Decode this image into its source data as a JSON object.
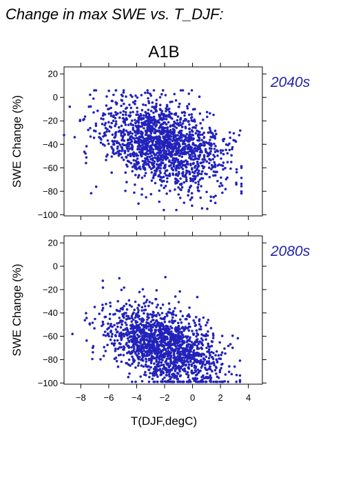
{
  "figure": {
    "title": "Change in max SWE vs. T_DJF:",
    "scenario": "A1B",
    "xlabel": "T(DJF,degC)",
    "point_color": "#2222bb",
    "label_color": "#2222aa"
  },
  "chart_data": [
    {
      "type": "scatter",
      "period_label": "2040s",
      "ylabel": "SWE Change (%)",
      "xlim": [
        -9.2,
        5.0
      ],
      "ylim": [
        -101,
        26
      ],
      "xticks": [
        -8,
        -6,
        -4,
        -2,
        0,
        2,
        4
      ],
      "yticks": [
        -100,
        -80,
        -60,
        -40,
        -20,
        0,
        20
      ],
      "ytick_labels": [
        "−100",
        "−80",
        "−60",
        "−40",
        "−20",
        "0",
        "20"
      ],
      "show_xtick_labels": false,
      "grid": false,
      "series": [
        {
          "n_points": 1600,
          "seed": 20401,
          "x_mean": -2.2,
          "x_sd": 2.1,
          "x_min": -9.2,
          "x_max": 3.5,
          "y_intercept": -46,
          "y_slope": -3.2,
          "y_sd": 18,
          "y_min": -96,
          "y_max": 6
        }
      ]
    },
    {
      "type": "scatter",
      "period_label": "2080s",
      "ylabel": "SWE Change (%)",
      "xlim": [
        -9.2,
        5.0
      ],
      "ylim": [
        -101,
        26
      ],
      "xticks": [
        -8,
        -6,
        -4,
        -2,
        0,
        2,
        4
      ],
      "xtick_labels": [
        "−8",
        "−6",
        "−4",
        "−2",
        "0",
        "2",
        "4"
      ],
      "yticks": [
        -100,
        -80,
        -60,
        -40,
        -20,
        0,
        20
      ],
      "ytick_labels": [
        "−100",
        "−80",
        "−60",
        "−40",
        "−20",
        "0",
        "20"
      ],
      "show_xtick_labels": true,
      "grid": false,
      "series": [
        {
          "n_points": 1600,
          "seed": 20802,
          "x_mean": -2.0,
          "x_sd": 2.0,
          "x_min": -9.2,
          "x_max": 3.4,
          "y_intercept": -75,
          "y_slope": -3.6,
          "y_sd": 16,
          "y_min": -99,
          "y_max": 2
        }
      ]
    }
  ]
}
